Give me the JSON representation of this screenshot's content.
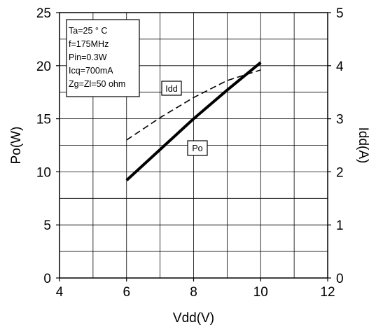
{
  "chart_data": {
    "type": "line",
    "xlabel": "Vdd(V)",
    "ylabel_left": "Po(W)",
    "ylabel_right": "Idd(A)",
    "xlim": [
      4,
      12
    ],
    "ylim_left": [
      0,
      25
    ],
    "ylim_right": [
      0,
      5
    ],
    "x_ticks": [
      4,
      6,
      8,
      10,
      12
    ],
    "y_left_ticks": [
      0,
      5,
      10,
      15,
      20,
      25
    ],
    "y_right_ticks": [
      0,
      1,
      2,
      3,
      4,
      5
    ],
    "grid": true,
    "conditions": [
      "Ta=25 ° C",
      "f=175MHz",
      "Pin=0.3W",
      "Icq=700mA",
      "Zg=Zl=50 ohm"
    ],
    "series": [
      {
        "name": "Po",
        "axis": "left",
        "style": "solid-thick",
        "color": "#000000",
        "x": [
          6,
          7,
          8,
          9,
          10
        ],
        "y": [
          9.2,
          12.1,
          15.0,
          17.7,
          20.3
        ]
      },
      {
        "name": "Idd",
        "axis": "right",
        "style": "dashed",
        "color": "#000000",
        "x": [
          6,
          7,
          8,
          9,
          10
        ],
        "y": [
          2.6,
          3.02,
          3.4,
          3.72,
          3.92
        ]
      }
    ]
  }
}
